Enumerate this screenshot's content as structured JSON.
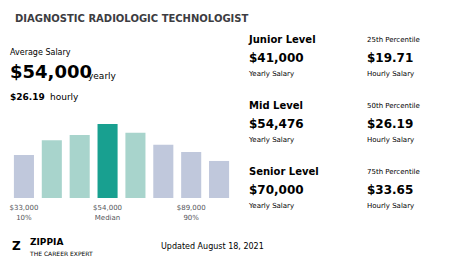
{
  "chart_data": {
    "type": "bar",
    "title": "DIAGNOSTIC RADIOLOGIC TECHNOLOGIST",
    "categories": [
      "$33,000\n10%",
      null,
      null,
      "$54,000\nMedian",
      null,
      null,
      "$89,000\n90%",
      null
    ],
    "values": [
      0.58,
      0.78,
      0.85,
      1.0,
      0.88,
      0.72,
      0.62,
      0.5
    ],
    "colors": [
      "#c0c8dc",
      "#a8d4cc",
      "#a8d4cc",
      "#18a090",
      "#a8d4cc",
      "#c0c8dc",
      "#c0c8dc",
      "#c0c8dc"
    ],
    "ylim": [
      0,
      1.08
    ],
    "tick_labels": "x",
    "grid": false,
    "annotations": [
      "Average Salary",
      "$54,000",
      "yearly",
      "$26.19",
      "hourly",
      "Junior Level",
      "25th Percentile",
      "$41,000",
      "Yearly Salary",
      "$19.71",
      "Hourly Salary",
      "Mid Level",
      "50th Percentile",
      "$54,476",
      "Yearly Salary",
      "$26.19",
      "Hourly Salary",
      "Senior Level",
      "75th Percentile",
      "$70,000",
      "Yearly Salary",
      "$33.65",
      "Hourly Salary",
      "Z",
      "ZIPPIA",
      "THE CAREER EXPERT",
      "Updated August 18, 2021"
    ]
  }
}
